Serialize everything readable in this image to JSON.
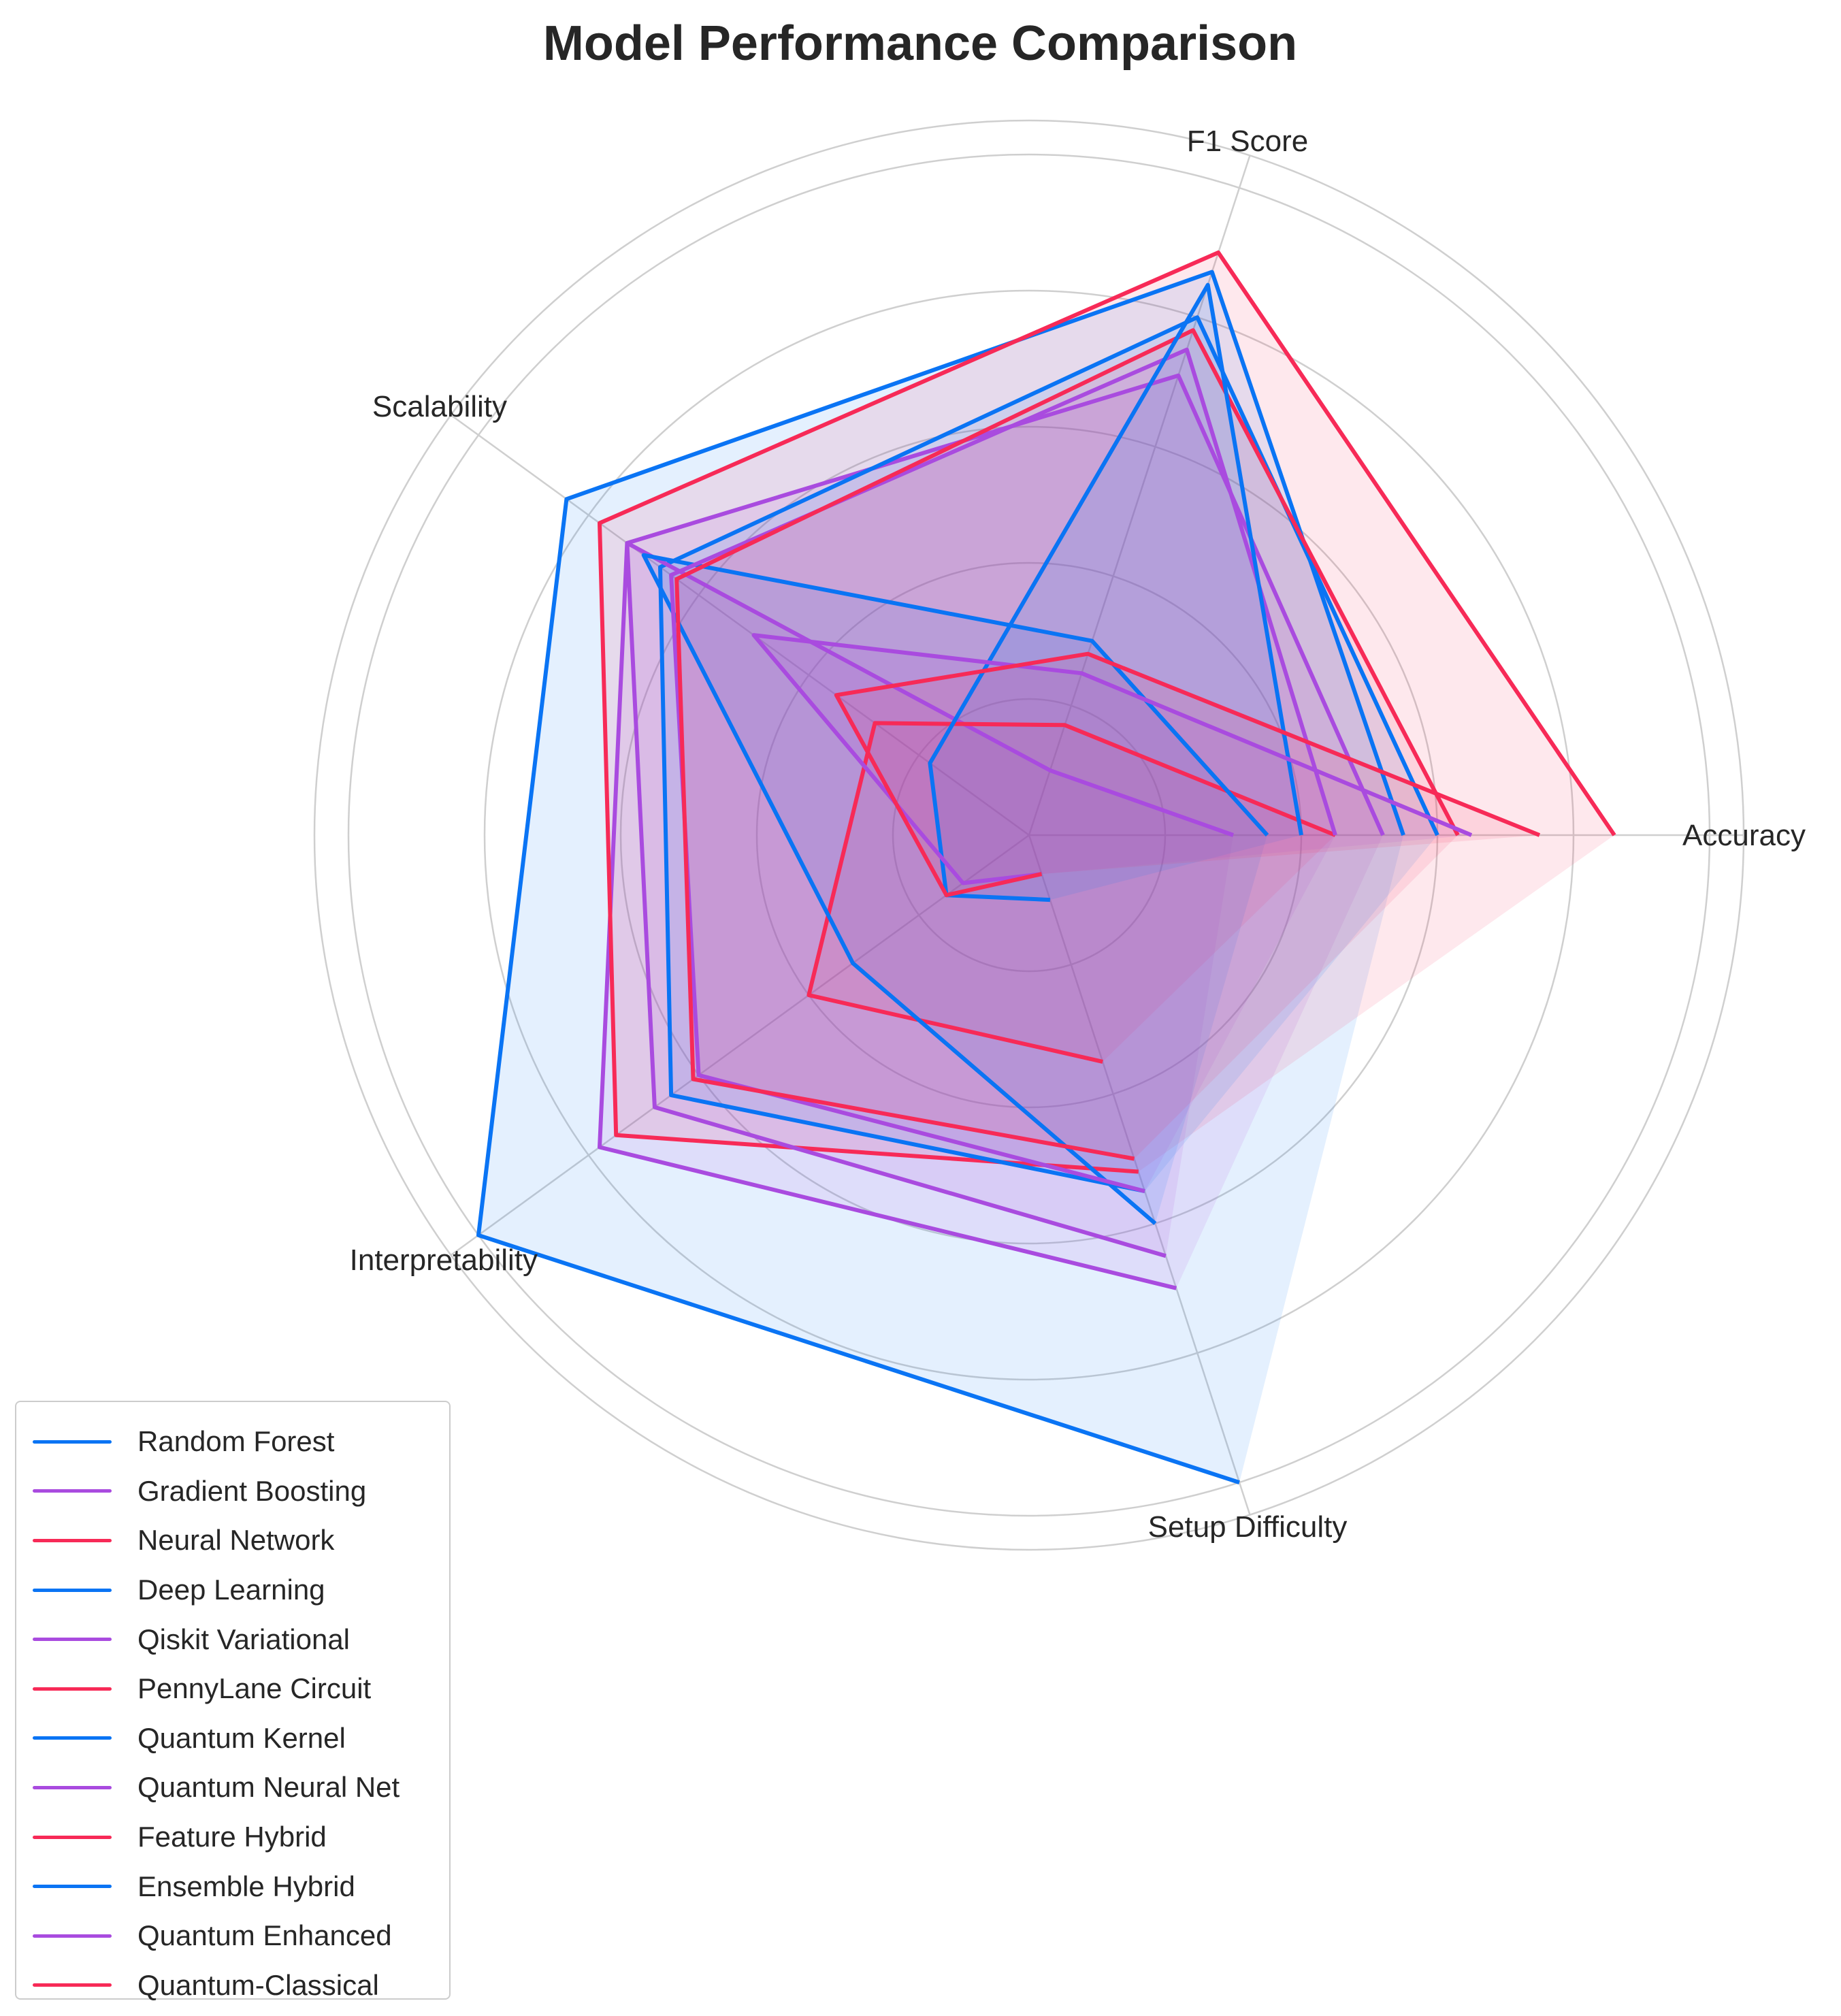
{
  "chart_data": {
    "type": "radar",
    "title": "Model Performance Comparison",
    "axes": [
      "Accuracy",
      "F1 Score",
      "Setup Difficulty",
      "Interpretability",
      "Scalability"
    ],
    "radial_range": [
      0,
      1
    ],
    "gridlines": [
      0.2,
      0.4,
      0.6,
      0.8,
      1.0
    ],
    "grid": true,
    "legend_position": "lower-left",
    "series": [
      {
        "name": "Random Forest",
        "color": "#0A74F4",
        "values": [
          0.55,
          0.87,
          0.84,
          1.0,
          1.0
        ]
      },
      {
        "name": "Gradient Boosting",
        "color": "#A94BDF",
        "values": [
          0.52,
          0.71,
          0.73,
          0.78,
          0.7
        ]
      },
      {
        "name": "Neural Network",
        "color": "#F72A57",
        "values": [
          0.86,
          0.9,
          0.78,
          0.75,
          0.52
        ]
      },
      {
        "name": "Deep Learning",
        "color": "#0A74F4",
        "values": [
          0.6,
          0.8,
          0.67,
          0.65,
          0.55
        ]
      },
      {
        "name": "Qiskit Variational",
        "color": "#A94BDF",
        "values": [
          0.3,
          0.1,
          0.73,
          0.68,
          0.65
        ]
      },
      {
        "name": "PennyLane Circuit",
        "color": "#F72A57",
        "values": [
          0.45,
          0.17,
          0.28,
          0.4,
          0.35
        ]
      },
      {
        "name": "Quantum Kernel",
        "color": "#0A74F4",
        "values": [
          0.35,
          0.3,
          0.7,
          0.32,
          0.6
        ]
      },
      {
        "name": "Quantum Neural Net",
        "color": "#A94BDF",
        "values": [
          0.45,
          0.75,
          0.65,
          0.6,
          0.55
        ]
      },
      {
        "name": "Feature Hybrid",
        "color": "#F72A57",
        "values": [
          0.63,
          0.78,
          0.64,
          0.61,
          0.5
        ]
      },
      {
        "name": "Ensemble Hybrid",
        "color": "#0A74F4",
        "values": [
          0.4,
          0.85,
          0.18,
          0.15,
          0.1
        ]
      },
      {
        "name": "Quantum Enhanced",
        "color": "#A94BDF",
        "values": [
          0.65,
          0.25,
          0.5,
          0.12,
          0.06
        ]
      },
      {
        "name": "Quantum-Classical",
        "color": "#F72A57",
        "values": [
          0.75,
          0.28,
          0.35,
          0.15,
          0.06
        ]
      }
    ]
  }
}
